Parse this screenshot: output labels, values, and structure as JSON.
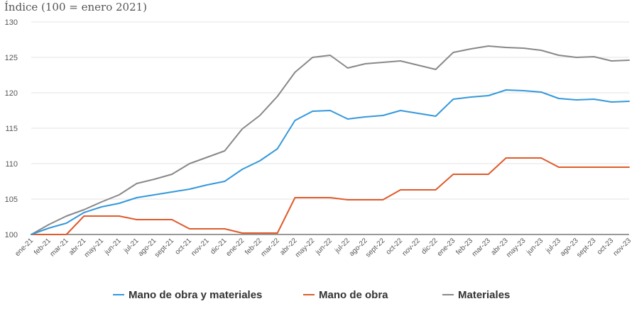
{
  "chart_data": {
    "type": "line",
    "title": "",
    "ylabel": "Índice (100 = enero 2021)",
    "xlabel": "",
    "ylim": [
      100,
      130
    ],
    "yticks": [
      100,
      105,
      110,
      115,
      120,
      125,
      130
    ],
    "grid": true,
    "legend_position": "bottom-center",
    "categories": [
      "ene-21",
      "feb-21",
      "mar-21",
      "abr-21",
      "may-21",
      "jun-21",
      "jul-21",
      "ago-21",
      "sept-21",
      "oct-21",
      "nov-21",
      "dic-21",
      "ene-22",
      "feb-22",
      "mar-22",
      "abr-22",
      "may-22",
      "jun-22",
      "jul-22",
      "ago-22",
      "sept-22",
      "oct-22",
      "nov-22",
      "dic-22",
      "ene-23",
      "feb-23",
      "mar-23",
      "abr-23",
      "may-23",
      "jun-23",
      "jul-23",
      "ago-23",
      "sept-23",
      "oct-23",
      "nov-23"
    ],
    "series": [
      {
        "name": "Mano de obra y materiales",
        "color": "#3498db",
        "values": [
          100,
          100.9,
          101.6,
          103.1,
          103.9,
          104.4,
          105.2,
          105.6,
          106,
          106.4,
          107,
          107.5,
          109.2,
          110.4,
          112.1,
          116.1,
          117.4,
          117.5,
          116.3,
          116.6,
          116.8,
          117.5,
          117.1,
          116.7,
          119.1,
          119.4,
          119.6,
          120.4,
          120.3,
          120.1,
          119.2,
          119,
          119.1,
          118.7,
          118.8
        ]
      },
      {
        "name": "Mano de obra",
        "color": "#e05a2b",
        "values": [
          100,
          100,
          100,
          102.6,
          102.6,
          102.6,
          102.1,
          102.1,
          102.1,
          100.8,
          100.8,
          100.8,
          100.2,
          100.2,
          100.2,
          105.2,
          105.2,
          105.2,
          104.9,
          104.9,
          104.9,
          106.3,
          106.3,
          106.3,
          108.5,
          108.5,
          108.5,
          110.8,
          110.8,
          110.8,
          109.5,
          109.5,
          109.5,
          109.5,
          109.5
        ]
      },
      {
        "name": "Materiales",
        "color": "#888888",
        "values": [
          100,
          101.4,
          102.6,
          103.5,
          104.6,
          105.6,
          107.2,
          107.8,
          108.5,
          110,
          110.9,
          111.8,
          114.9,
          116.8,
          119.5,
          122.9,
          125,
          125.3,
          123.5,
          124.1,
          124.3,
          124.5,
          123.9,
          123.3,
          125.7,
          126.2,
          126.6,
          126.4,
          126.3,
          126,
          125.3,
          125,
          125.1,
          124.5,
          124.6
        ]
      }
    ]
  }
}
